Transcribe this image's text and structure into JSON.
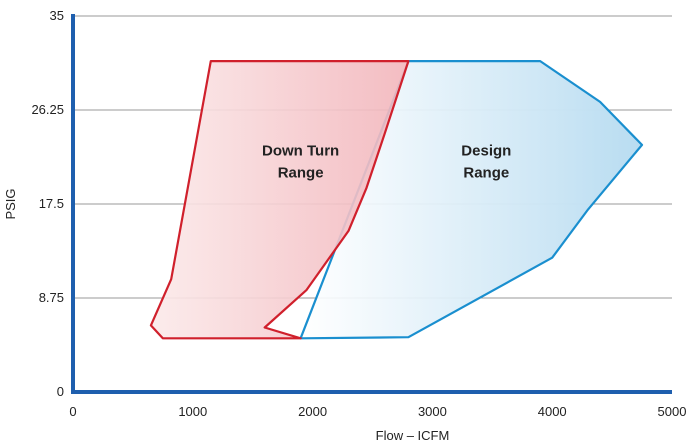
{
  "chart_data": {
    "type": "area",
    "title": "",
    "xlabel": "Flow – ICFM",
    "ylabel": "PSIG",
    "xlim": [
      0,
      5000
    ],
    "ylim": [
      0,
      35
    ],
    "grid": true,
    "xticks": [
      "0",
      "1000",
      "2000",
      "3000",
      "4000",
      "5000"
    ],
    "yticks": [
      "0",
      "8.75",
      "17.5",
      "26.25",
      "35"
    ],
    "series": [
      {
        "name": "Design Range",
        "color": "#1a8fcf",
        "x": [
          1900,
          2800,
          4000,
          4300,
          4750,
          4400,
          3900,
          3300,
          2800,
          1900
        ],
        "y": [
          5.0,
          5.1,
          12.5,
          17.0,
          23.0,
          27.0,
          30.8,
          30.8,
          30.8,
          5.0
        ],
        "note_label": "Design Range"
      },
      {
        "name": "Down Turn Range",
        "color": "#d0202c",
        "x": [
          1150,
          2800,
          2600,
          2450,
          2300,
          1950,
          1600,
          1900,
          750,
          650,
          820,
          1150
        ],
        "y": [
          30.8,
          30.8,
          24.0,
          19.0,
          15.0,
          9.5,
          6.0,
          5.0,
          5.0,
          6.2,
          10.5,
          30.8
        ],
        "note_label": "Down Turn Range"
      }
    ],
    "labels": {
      "design": [
        "Design",
        "Range"
      ],
      "downturn": [
        "Down Turn",
        "Range"
      ]
    },
    "label_positions": {
      "design": [
        3450,
        22.0
      ],
      "downturn": [
        1900,
        22.0
      ]
    }
  }
}
